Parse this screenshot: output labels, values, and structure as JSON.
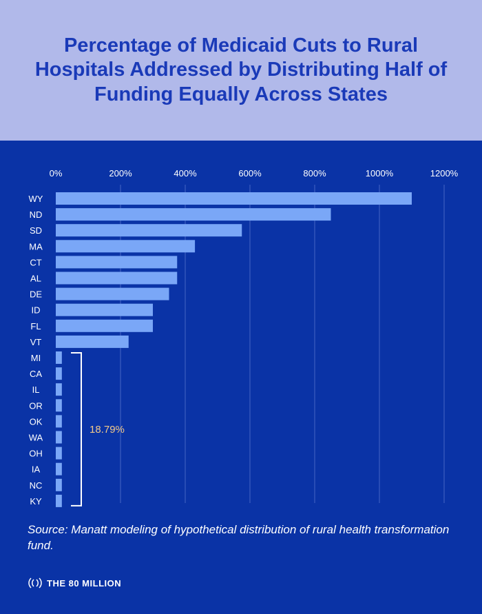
{
  "header": {
    "title": "Percentage of Medicaid Cuts to Rural Hospitals Addressed by Distributing Half of Funding Equally Across States"
  },
  "colors": {
    "background": "#0a33a6",
    "header_background": "#b1b9ea",
    "title": "#1a3ab8",
    "bar": "#7aa7f7",
    "grid": "#4566c4",
    "annotation": "#f2c98a"
  },
  "chart_data": {
    "type": "bar",
    "orientation": "horizontal",
    "title": "Percentage of Medicaid Cuts to Rural Hospitals Addressed by Distributing Half of Funding Equally Across States",
    "xlabel": "",
    "ylabel": "",
    "xlim": [
      0,
      1200
    ],
    "x_ticks": [
      0,
      200,
      400,
      600,
      800,
      1000,
      1200
    ],
    "x_tick_labels": [
      "0%",
      "200%",
      "400%",
      "600%",
      "800%",
      "1000%",
      "1200%"
    ],
    "grid": true,
    "categories": [
      "WY",
      "ND",
      "SD",
      "MA",
      "CT",
      "AL",
      "DE",
      "ID",
      "FL",
      "VT",
      "MI",
      "CA",
      "IL",
      "OR",
      "OK",
      "WA",
      "OH",
      "IA",
      "NC",
      "KY"
    ],
    "values": [
      1100,
      850,
      575,
      430,
      375,
      375,
      350,
      300,
      300,
      225,
      18.79,
      18.79,
      18.79,
      18.79,
      18.79,
      18.79,
      18.79,
      18.79,
      18.79,
      18.79
    ],
    "annotations": [
      {
        "text": "18.79%",
        "bracket_categories": [
          "MI",
          "KY"
        ]
      }
    ]
  },
  "footer": {
    "source": "Source: Manatt modeling of hypothetical distribution of rural health transformation fund.",
    "brand": "THE 80 MILLION"
  }
}
